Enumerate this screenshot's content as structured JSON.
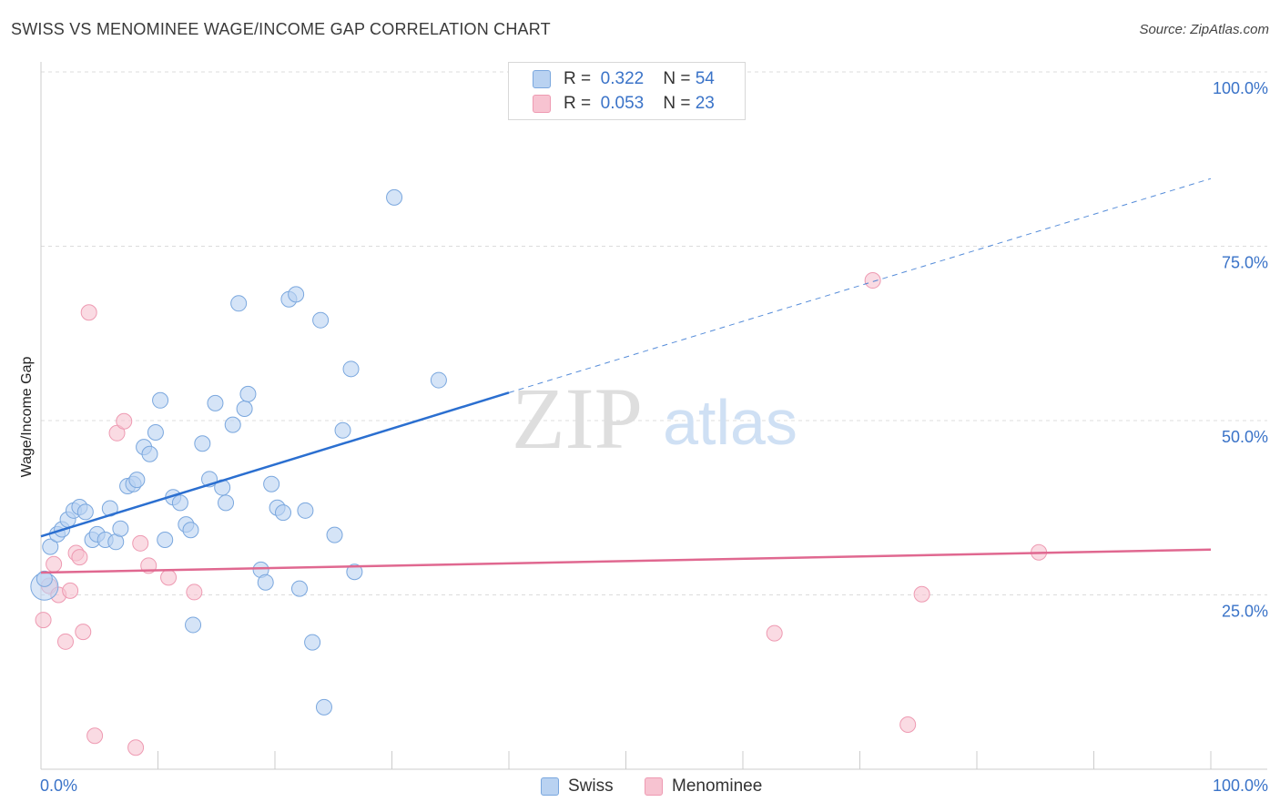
{
  "header": {
    "title": "SWISS VS MENOMINEE WAGE/INCOME GAP CORRELATION CHART",
    "source": "Source: ZipAtlas.com"
  },
  "legend": {
    "rows": [
      {
        "r_label": "R =",
        "r_value": "0.322",
        "n_label": "N =",
        "n_value": "54"
      },
      {
        "r_label": "R =",
        "r_value": "0.053",
        "n_label": "N =",
        "n_value": "23"
      }
    ],
    "bottom": [
      "Swiss",
      "Menominee"
    ]
  },
  "watermark": {
    "zip": "ZIP",
    "atlas": "atlas"
  },
  "colors": {
    "swiss_fill": "#b9d2f1",
    "swiss_stroke": "#7aa7de",
    "swiss_line": "#2b6fd0",
    "menominee_fill": "#f7c3d1",
    "menominee_stroke": "#ee9ab2",
    "menominee_line": "#e06890",
    "axis_label": "#3a73c8",
    "grid": "#dcdcdc"
  },
  "chart_data": {
    "type": "scatter",
    "title": "SWISS VS MENOMINEE WAGE/INCOME GAP CORRELATION CHART",
    "xlabel": "",
    "ylabel": "Wage/Income Gap",
    "xlim": [
      0,
      100
    ],
    "ylim": [
      0,
      100
    ],
    "x_tick_labels": [
      "0.0%",
      "100.0%"
    ],
    "y_tick_labels": [
      "100.0%",
      "75.0%",
      "50.0%",
      "25.0%"
    ],
    "y_ticks": [
      100,
      75,
      50,
      25
    ],
    "series": [
      {
        "name": "Swiss",
        "R": 0.322,
        "N": 54,
        "points": [
          [
            0.3,
            27.3
          ],
          [
            0.8,
            31.9
          ],
          [
            1.4,
            33.7
          ],
          [
            1.8,
            34.4
          ],
          [
            2.3,
            35.8
          ],
          [
            2.8,
            37.1
          ],
          [
            3.3,
            37.6
          ],
          [
            3.8,
            36.9
          ],
          [
            4.4,
            32.9
          ],
          [
            4.8,
            33.7
          ],
          [
            5.5,
            32.9
          ],
          [
            5.9,
            37.4
          ],
          [
            6.4,
            32.6
          ],
          [
            6.8,
            34.5
          ],
          [
            7.4,
            40.6
          ],
          [
            7.9,
            40.9
          ],
          [
            8.2,
            41.5
          ],
          [
            8.8,
            46.2
          ],
          [
            9.3,
            45.2
          ],
          [
            9.8,
            48.3
          ],
          [
            10.2,
            52.9
          ],
          [
            10.6,
            32.9
          ],
          [
            11.3,
            39.0
          ],
          [
            11.9,
            38.2
          ],
          [
            12.4,
            35.1
          ],
          [
            12.8,
            34.3
          ],
          [
            13.0,
            20.7
          ],
          [
            13.8,
            46.7
          ],
          [
            14.4,
            41.6
          ],
          [
            14.9,
            52.5
          ],
          [
            15.5,
            40.4
          ],
          [
            15.8,
            38.2
          ],
          [
            16.4,
            49.4
          ],
          [
            16.9,
            66.8
          ],
          [
            17.4,
            51.7
          ],
          [
            17.7,
            53.8
          ],
          [
            18.8,
            28.6
          ],
          [
            19.2,
            26.8
          ],
          [
            19.7,
            40.9
          ],
          [
            20.2,
            37.5
          ],
          [
            20.7,
            36.8
          ],
          [
            21.2,
            67.4
          ],
          [
            21.8,
            68.1
          ],
          [
            22.1,
            25.9
          ],
          [
            22.6,
            37.1
          ],
          [
            23.2,
            18.2
          ],
          [
            23.9,
            64.4
          ],
          [
            24.2,
            8.9
          ],
          [
            25.1,
            33.6
          ],
          [
            25.8,
            48.6
          ],
          [
            26.5,
            57.4
          ],
          [
            26.8,
            28.3
          ],
          [
            30.2,
            82.0
          ],
          [
            34.0,
            55.8
          ]
        ],
        "trend": {
          "x0": 0,
          "y0": 33.4,
          "x1": 40,
          "y1": 54.0,
          "x_dash_end": 100,
          "y_dash_end": 84.7
        }
      },
      {
        "name": "Menominee",
        "R": 0.053,
        "N": 23,
        "points": [
          [
            0.2,
            21.4
          ],
          [
            0.7,
            26.3
          ],
          [
            1.1,
            29.4
          ],
          [
            1.5,
            25.0
          ],
          [
            2.1,
            18.3
          ],
          [
            2.5,
            25.6
          ],
          [
            3.0,
            31.0
          ],
          [
            3.3,
            30.4
          ],
          [
            3.6,
            19.7
          ],
          [
            4.1,
            65.5
          ],
          [
            4.6,
            4.8
          ],
          [
            6.5,
            48.2
          ],
          [
            7.1,
            49.9
          ],
          [
            8.1,
            3.1
          ],
          [
            8.5,
            32.4
          ],
          [
            9.2,
            29.2
          ],
          [
            10.9,
            27.5
          ],
          [
            13.1,
            25.4
          ],
          [
            62.7,
            19.5
          ],
          [
            71.1,
            70.1
          ],
          [
            74.1,
            6.4
          ],
          [
            75.3,
            25.1
          ],
          [
            85.3,
            31.1
          ]
        ],
        "trend": {
          "x0": 0,
          "y0": 28.2,
          "x1": 100,
          "y1": 31.5
        }
      }
    ]
  }
}
